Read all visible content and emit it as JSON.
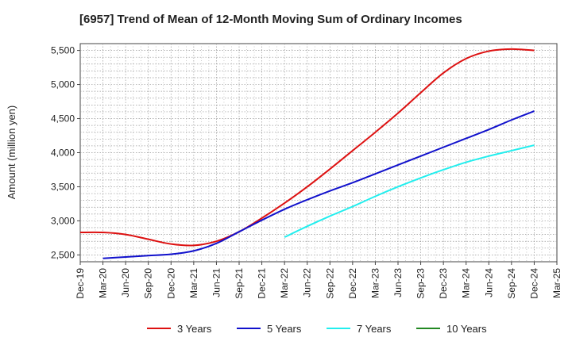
{
  "chart_data": {
    "type": "line",
    "title": "[6957]  Trend of Mean of 12-Month Moving Sum of Ordinary Incomes",
    "xlabel": "",
    "ylabel": "Amount (million yen)",
    "ylim": [
      2400,
      5600
    ],
    "yticks": [
      2500,
      3000,
      3500,
      4000,
      4500,
      5000,
      5500
    ],
    "ytick_labels": [
      "2,500",
      "3,000",
      "3,500",
      "4,000",
      "4,500",
      "5,000",
      "5,500"
    ],
    "categories": [
      "Dec-19",
      "Mar-20",
      "Jun-20",
      "Sep-20",
      "Dec-20",
      "Mar-21",
      "Jun-21",
      "Sep-21",
      "Dec-21",
      "Mar-22",
      "Jun-22",
      "Sep-22",
      "Dec-22",
      "Mar-23",
      "Jun-23",
      "Sep-23",
      "Dec-23",
      "Mar-24",
      "Jun-24",
      "Sep-24",
      "Dec-24",
      "Mar-25"
    ],
    "grid": true,
    "legend_position": "bottom",
    "series": [
      {
        "name": "3 Years",
        "color": "#dd1111",
        "x": [
          "Dec-19",
          "Mar-20",
          "Jun-20",
          "Sep-20",
          "Dec-20",
          "Mar-21",
          "Jun-21",
          "Sep-21",
          "Dec-21",
          "Mar-22",
          "Jun-22",
          "Sep-22",
          "Dec-22",
          "Mar-23",
          "Jun-23",
          "Sep-23",
          "Dec-23",
          "Mar-24",
          "Jun-24",
          "Sep-24",
          "Dec-24"
        ],
        "values": [
          2830,
          2830,
          2800,
          2730,
          2660,
          2640,
          2700,
          2840,
          3040,
          3260,
          3500,
          3760,
          4030,
          4300,
          4580,
          4880,
          5170,
          5380,
          5490,
          5520,
          5500
        ]
      },
      {
        "name": "5 Years",
        "color": "#1111cc",
        "x": [
          "Mar-20",
          "Jun-20",
          "Sep-20",
          "Dec-20",
          "Mar-21",
          "Jun-21",
          "Sep-21",
          "Dec-21",
          "Mar-22",
          "Jun-22",
          "Sep-22",
          "Dec-22",
          "Mar-23",
          "Jun-23",
          "Sep-23",
          "Dec-23",
          "Mar-24",
          "Jun-24",
          "Sep-24",
          "Dec-24"
        ],
        "values": [
          2450,
          2470,
          2490,
          2510,
          2560,
          2670,
          2840,
          3010,
          3170,
          3310,
          3440,
          3560,
          3690,
          3820,
          3950,
          4080,
          4210,
          4340,
          4480,
          4610
        ]
      },
      {
        "name": "7 Years",
        "color": "#22eeee",
        "x": [
          "Mar-22",
          "Jun-22",
          "Sep-22",
          "Dec-22",
          "Mar-23",
          "Jun-23",
          "Sep-23",
          "Dec-23",
          "Mar-24",
          "Jun-24",
          "Sep-24",
          "Dec-24"
        ],
        "values": [
          2760,
          2920,
          3070,
          3210,
          3360,
          3500,
          3630,
          3750,
          3860,
          3950,
          4030,
          4110
        ]
      },
      {
        "name": "10 Years",
        "color": "#228822",
        "x": [],
        "values": []
      }
    ]
  }
}
